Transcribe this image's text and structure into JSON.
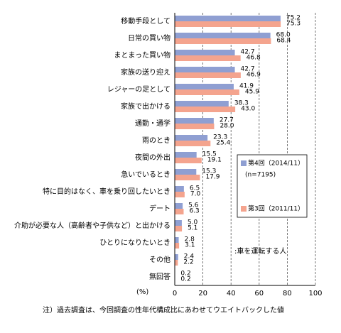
{
  "chart_data": {
    "type": "hbar",
    "categories": [
      "移動手段として",
      "日常の買い物",
      "まとまった買い物",
      "家族の送り迎え",
      "レジャーの足として",
      "家族で出かける",
      "通勤・通学",
      "雨のとき",
      "夜間の外出",
      "急いでいるとき",
      "特に目的はなく、車を乗り回したいとき",
      "デート",
      "介助が必要な人（高齢者や子供など）と出かける",
      "ひとりになりたいとき",
      "その他",
      "無回答"
    ],
    "series": [
      {
        "name": "第4回（2014/11）",
        "legend_note": "(n=7195)",
        "color": "#8f9fd2",
        "values": [
          75.2,
          68.0,
          42.7,
          42.7,
          41.9,
          38.3,
          27.7,
          23.3,
          15.5,
          15.3,
          6.5,
          5.6,
          5.0,
          2.8,
          2.4,
          0.2
        ],
        "value_labels": [
          "75.2",
          "68.0",
          "42.7",
          "42.7",
          "41.9",
          "38.3",
          "27.7",
          "23.3",
          "15.5",
          "15.3",
          "6.5",
          "5.6",
          "5.0",
          "2.8",
          "2.4",
          "0.2"
        ]
      },
      {
        "name": "第3回（2011/11）",
        "color": "#f4a48e",
        "values": [
          75.3,
          68.4,
          46.8,
          46.9,
          45.9,
          43.0,
          28.0,
          25.4,
          19.1,
          17.9,
          7.0,
          6.3,
          5.1,
          3.1,
          2.2,
          0.2
        ],
        "value_labels": [
          "75.3",
          "68.4",
          "46.8",
          "46.9",
          "45.9",
          "43.0",
          "28.0",
          "25.4",
          "19.1",
          "17.9",
          "7.0",
          "6.3",
          "5.1",
          "3.1",
          "2.2",
          "0.2"
        ]
      }
    ],
    "xlim": [
      0,
      100
    ],
    "xticks": [
      0,
      20,
      40,
      60,
      80,
      100
    ],
    "grid": true,
    "x_label": "(%)",
    "annotation": ":車を運転する人",
    "footnote": "注）過去調査は、今回調査の性年代構成比にあわせてウエイトバックした値"
  }
}
